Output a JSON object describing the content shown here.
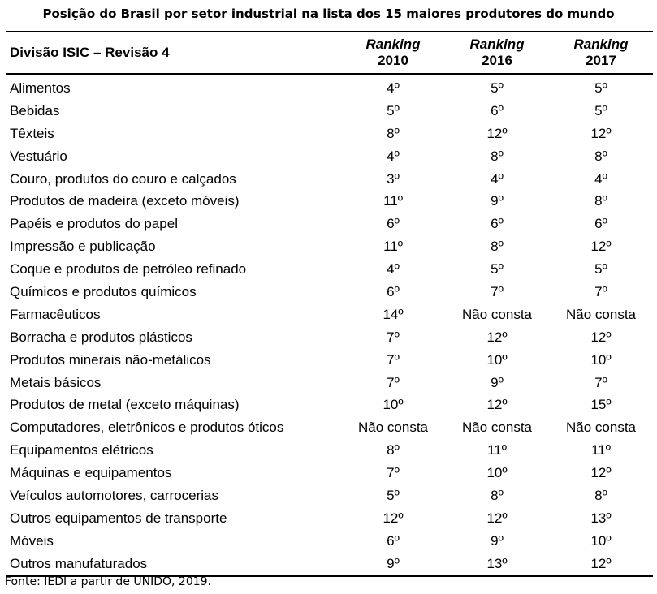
{
  "title": "Posição do Brasil por setor industrial na lista dos 15 maiores produtores do mundo",
  "header": {
    "division": "Divisão ISIC – Revisão 4",
    "ranking_word": "Ranking",
    "years": [
      "2010",
      "2016",
      "2017"
    ]
  },
  "rows": [
    {
      "sector": "Alimentos",
      "r2010": "4º",
      "r2016": "5º",
      "r2017": "5º"
    },
    {
      "sector": "Bebidas",
      "r2010": "5º",
      "r2016": "6º",
      "r2017": "5º"
    },
    {
      "sector": "Têxteis",
      "r2010": "8º",
      "r2016": "12º",
      "r2017": "12º"
    },
    {
      "sector": "Vestuário",
      "r2010": "4º",
      "r2016": "8º",
      "r2017": "8º"
    },
    {
      "sector": "Couro, produtos do couro e calçados",
      "r2010": "3º",
      "r2016": "4º",
      "r2017": "4º"
    },
    {
      "sector": "Produtos de madeira (exceto móveis)",
      "r2010": "11º",
      "r2016": "9º",
      "r2017": "8º"
    },
    {
      "sector": "Papéis e produtos do papel",
      "r2010": "6º",
      "r2016": "6º",
      "r2017": "6º"
    },
    {
      "sector": "Impressão e publicação",
      "r2010": "11º",
      "r2016": "8º",
      "r2017": "12º"
    },
    {
      "sector": "Coque e produtos de petróleo refinado",
      "r2010": "4º",
      "r2016": "5º",
      "r2017": "5º"
    },
    {
      "sector": "Químicos e produtos químicos",
      "r2010": "6º",
      "r2016": "7º",
      "r2017": "7º"
    },
    {
      "sector": "Farmacêuticos",
      "r2010": "14º",
      "r2016": "Não consta",
      "r2017": "Não consta"
    },
    {
      "sector": "Borracha e produtos plásticos",
      "r2010": "7º",
      "r2016": "12º",
      "r2017": "12º"
    },
    {
      "sector": "Produtos minerais não-metálicos",
      "r2010": "7º",
      "r2016": "10º",
      "r2017": "10º"
    },
    {
      "sector": "Metais básicos",
      "r2010": "7º",
      "r2016": "9º",
      "r2017": "7º"
    },
    {
      "sector": "Produtos de metal (exceto máquinas)",
      "r2010": "10º",
      "r2016": "12º",
      "r2017": "15º"
    },
    {
      "sector": "Computadores, eletrônicos e produtos óticos",
      "r2010": "Não consta",
      "r2016": "Não consta",
      "r2017": "Não consta"
    },
    {
      "sector": "Equipamentos elétricos",
      "r2010": "8º",
      "r2016": "11º",
      "r2017": "11º"
    },
    {
      "sector": "Máquinas e equipamentos",
      "r2010": "7º",
      "r2016": "10º",
      "r2017": "12º"
    },
    {
      "sector": "Veículos automotores, carrocerias",
      "r2010": "5º",
      "r2016": "8º",
      "r2017": "8º"
    },
    {
      "sector": "Outros equipamentos de transporte",
      "r2010": "12º",
      "r2016": "12º",
      "r2017": "13º"
    },
    {
      "sector": "Móveis",
      "r2010": "6º",
      "r2016": "9º",
      "r2017": "10º"
    },
    {
      "sector": "Outros manufaturados",
      "r2010": "9º",
      "r2016": "13º",
      "r2017": "12º"
    }
  ],
  "source": "Fonte: IEDI a partir de UNIDO, 2019."
}
